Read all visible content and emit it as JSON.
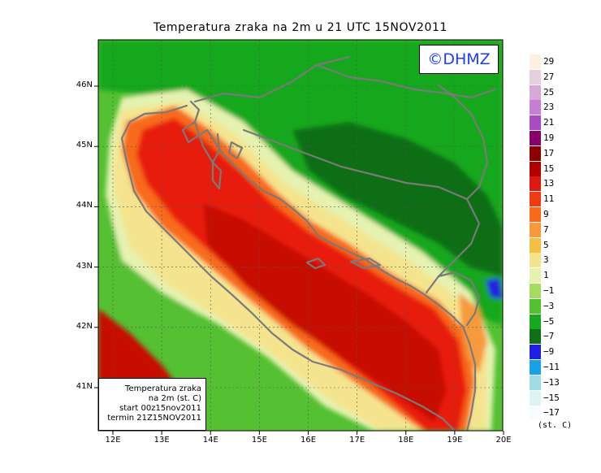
{
  "title": "Temperatura zraka na 2m u 21 UTC 15NOV2011",
  "watermark": "©DHMZ",
  "info_box": {
    "lines": [
      "Temperatura zraka",
      "na 2m (st. C)",
      "start 00z15nov2011",
      "termin 21Z15NOV2011"
    ]
  },
  "axes": {
    "lat_labels": [
      {
        "label": "46N",
        "value": 46
      },
      {
        "label": "45N",
        "value": 45
      },
      {
        "label": "44N",
        "value": 44
      },
      {
        "label": "43N",
        "value": 43
      },
      {
        "label": "42N",
        "value": 42
      },
      {
        "label": "41N",
        "value": 41
      }
    ],
    "lon_labels": [
      {
        "label": "12E",
        "value": 12
      },
      {
        "label": "13E",
        "value": 13
      },
      {
        "label": "14E",
        "value": 14
      },
      {
        "label": "15E",
        "value": 15
      },
      {
        "label": "16E",
        "value": 16
      },
      {
        "label": "17E",
        "value": 17
      },
      {
        "label": "18E",
        "value": 18
      },
      {
        "label": "19E",
        "value": 19
      },
      {
        "label": "20E",
        "value": 20
      }
    ]
  },
  "legend": {
    "unit": "(st. C)",
    "colors": [
      "#fdf0e0",
      "#e7cfdc",
      "#d8a8d8",
      "#c87ed4",
      "#a84cc0",
      "#8a0068",
      "#8c0000",
      "#b40000",
      "#dc1a12",
      "#ef3a12",
      "#f86a1c",
      "#f69a3c",
      "#f3c043",
      "#f4e48e",
      "#e5f2b0",
      "#a6dc5e",
      "#54c032",
      "#18a81e",
      "#106e16",
      "#2020e0",
      "#18a0e8",
      "#a0dce6",
      "#dcf4f4",
      "#f8fcfc"
    ],
    "labels": [
      "29",
      "27",
      "25",
      "23",
      "21",
      "19",
      "17",
      "15",
      "13",
      "11",
      "9",
      "7",
      "5",
      "3",
      "1",
      "−1",
      "−3",
      "−5",
      "−7",
      "−9",
      "−11",
      "−13",
      "−15",
      "−17"
    ]
  },
  "palette": {
    "sea_warm": "#c70a05",
    "sea_hot": "#e81a0e",
    "coast_orange": "#f86a1c",
    "light_green": "#e5f2b0",
    "mid_green": "#54c032",
    "green": "#18a81e",
    "dark_green": "#106e16",
    "border_gray": "#7a7a7a"
  }
}
